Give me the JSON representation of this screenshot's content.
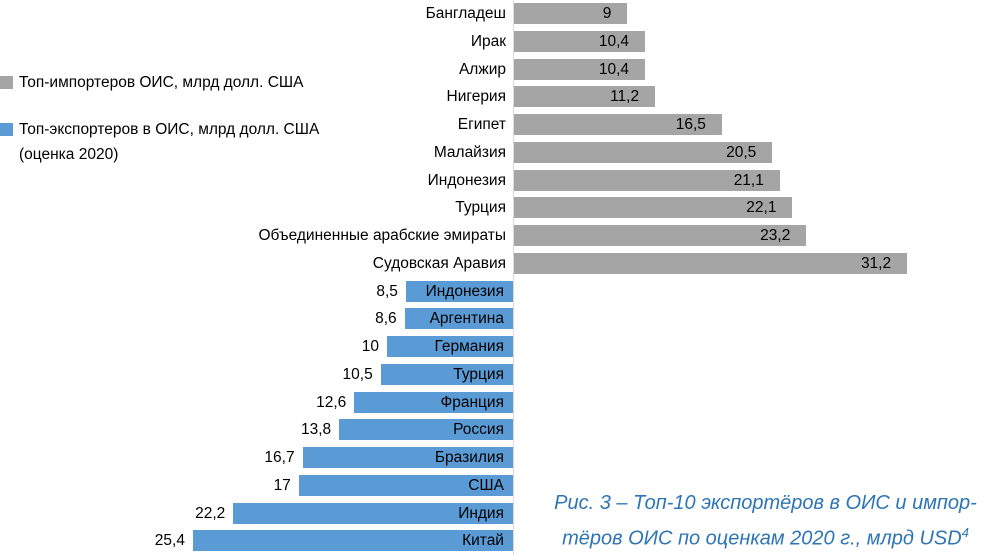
{
  "legend": {
    "items": [
      {
        "label": "Топ-импортеров ОИС, млрд долл. США",
        "color": "#a5a5a5"
      },
      {
        "label_line1": "Топ-экспортеров в ОИС, млрд долл. США",
        "label_line2": "(оценка 2020)",
        "color": "#5b9bd5"
      }
    ]
  },
  "caption": {
    "line1": "Рис. 3 – Топ-10 экспортёров в ОИС и импор-",
    "line2_text": "тёров ОИС по оценкам 2020 г., млрд USD",
    "line2_sup": "4"
  },
  "chart_data": {
    "type": "bar",
    "orientation": "horizontal",
    "axis": "central vertical category axis; importers extend right, exporters extend left",
    "value_max": 31.2,
    "grid": false,
    "legend_position": "left",
    "series": [
      {
        "name": "Топ-импортеров ОИС, млрд долл. США",
        "color": "#a5a5a5",
        "direction": "right",
        "data": [
          {
            "category": "Бангладеш",
            "value": 9,
            "value_label": "9"
          },
          {
            "category": "Ирак",
            "value": 10.4,
            "value_label": "10,4"
          },
          {
            "category": "Алжир",
            "value": 10.4,
            "value_label": "10,4"
          },
          {
            "category": "Нигерия",
            "value": 11.2,
            "value_label": "11,2"
          },
          {
            "category": "Египет",
            "value": 16.5,
            "value_label": "16,5"
          },
          {
            "category": "Малайзия",
            "value": 20.5,
            "value_label": "20,5"
          },
          {
            "category": "Индонезия",
            "value": 21.1,
            "value_label": "21,1"
          },
          {
            "category": "Турция",
            "value": 22.1,
            "value_label": "22,1"
          },
          {
            "category": "Объединенные арабские эмираты",
            "value": 23.2,
            "value_label": "23,2"
          },
          {
            "category": "Судовская Аравия",
            "value": 31.2,
            "value_label": "31,2"
          }
        ]
      },
      {
        "name": "Топ-экспортеров в ОИС, млрд долл. США (оценка 2020)",
        "color": "#5b9bd5",
        "direction": "left",
        "data": [
          {
            "category": "Индонезия",
            "value": 8.5,
            "value_label": "8,5"
          },
          {
            "category": "Аргентина",
            "value": 8.6,
            "value_label": "8,6"
          },
          {
            "category": "Германия",
            "value": 10,
            "value_label": "10"
          },
          {
            "category": "Турция",
            "value": 10.5,
            "value_label": "10,5"
          },
          {
            "category": "Франция",
            "value": 12.6,
            "value_label": "12,6"
          },
          {
            "category": "Россия",
            "value": 13.8,
            "value_label": "13,8"
          },
          {
            "category": "Бразилия",
            "value": 16.7,
            "value_label": "16,7"
          },
          {
            "category": "США",
            "value": 17,
            "value_label": "17"
          },
          {
            "category": "Индия",
            "value": 22.2,
            "value_label": "22,2"
          },
          {
            "category": "Китай",
            "value": 25.4,
            "value_label": "25,4"
          }
        ]
      }
    ]
  }
}
